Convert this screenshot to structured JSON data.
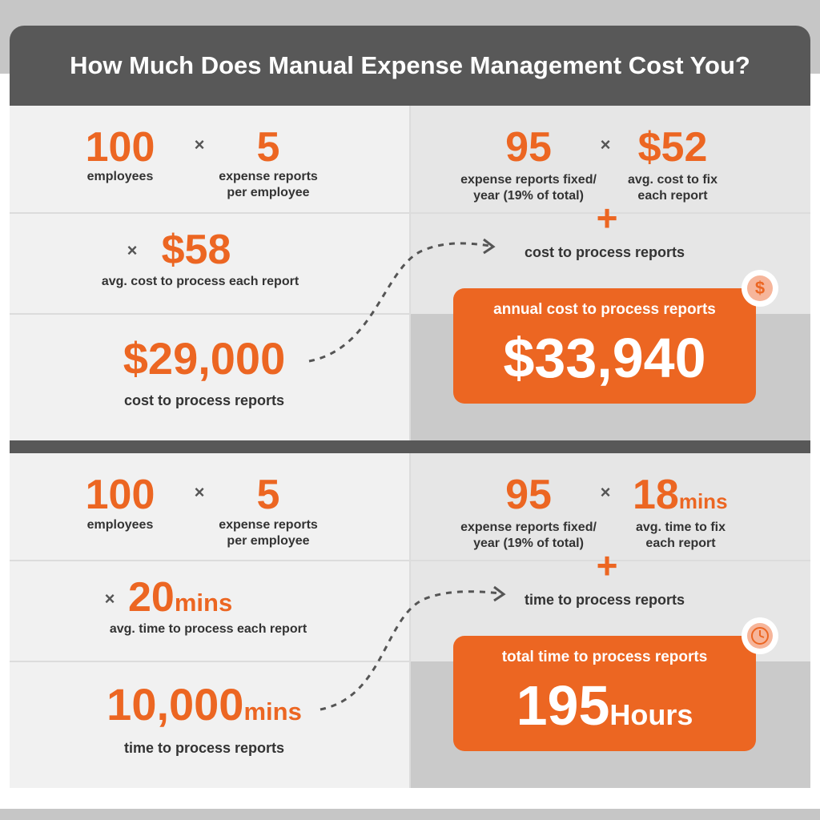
{
  "title": "How Much Does Manual Expense Management Cost You?",
  "cost": {
    "employees": {
      "value": "100",
      "label": "employees"
    },
    "reports_per_employee": {
      "value": "5",
      "label_1": "expense reports",
      "label_2": "per employee"
    },
    "cost_per_report": {
      "value": "$58",
      "label": "avg. cost to process each report"
    },
    "subtotal": {
      "value": "$29,000",
      "label": "cost to process reports"
    },
    "fixed_reports": {
      "value": "95",
      "label_1": "expense reports fixed/",
      "label_2": "year (19% of total)"
    },
    "fix_cost": {
      "value": "$52",
      "label_1": "avg. cost to fix",
      "label_2": "each report"
    },
    "plus_caption": "cost to process reports",
    "total": {
      "label": "annual cost to process reports",
      "value": "$33,940"
    }
  },
  "time": {
    "employees": {
      "value": "100",
      "label": "employees"
    },
    "reports_per_employee": {
      "value": "5",
      "label_1": "expense reports",
      "label_2": "per employee"
    },
    "time_per_report": {
      "value": "20",
      "unit": "mins",
      "label": "avg. time to process each report"
    },
    "subtotal": {
      "value": "10,000",
      "unit": "mins",
      "label": "time to process reports"
    },
    "fixed_reports": {
      "value": "95",
      "label_1": "expense reports fixed/",
      "label_2": "year (19% of total)"
    },
    "fix_time": {
      "value": "18",
      "unit": "mins",
      "label_1": "avg. time to fix",
      "label_2": "each report"
    },
    "plus_caption": "time to process reports",
    "total": {
      "label": "total time to process reports",
      "value": "195",
      "unit": "Hours"
    }
  },
  "symbols": {
    "times": "×",
    "plus": "+",
    "dollar": "$"
  },
  "icons": {
    "cost_badge": "dollar-icon",
    "time_badge": "clock-icon"
  },
  "colors": {
    "accent": "#ec6622",
    "dark_bar": "#585858",
    "panel": "#f1f1f1",
    "text": "#333333"
  }
}
